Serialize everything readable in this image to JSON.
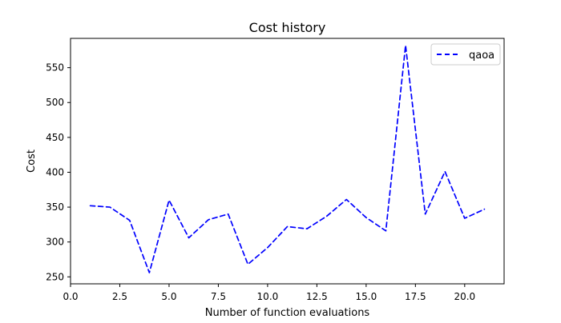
{
  "chart_data": {
    "type": "line",
    "title": "Cost history",
    "xlabel": "Number of function evaluations",
    "ylabel": "Cost",
    "xlim": [
      0.0,
      22.0
    ],
    "ylim": [
      240,
      592
    ],
    "xticks": [
      0.0,
      2.5,
      5.0,
      7.5,
      10.0,
      12.5,
      15.0,
      17.5,
      20.0
    ],
    "xtick_labels": [
      "0.0",
      "2.5",
      "5.0",
      "7.5",
      "10.0",
      "12.5",
      "15.0",
      "17.5",
      "20.0"
    ],
    "yticks": [
      250,
      300,
      350,
      400,
      450,
      500,
      550
    ],
    "ytick_labels": [
      "250",
      "300",
      "350",
      "400",
      "450",
      "500",
      "550"
    ],
    "grid": false,
    "legend_position": "top-right",
    "series": [
      {
        "name": "qaoa",
        "color": "#0000ff",
        "line_style": "dashed",
        "x": [
          1,
          2,
          3,
          4,
          5,
          6,
          7,
          8,
          9,
          10,
          11,
          12,
          13,
          14,
          15,
          16,
          17,
          18,
          19,
          20,
          21
        ],
        "y": [
          352,
          350,
          331,
          256,
          360,
          306,
          332,
          340,
          268,
          292,
          322,
          319,
          337,
          361,
          335,
          316,
          582,
          340,
          401,
          334,
          347
        ]
      }
    ]
  }
}
